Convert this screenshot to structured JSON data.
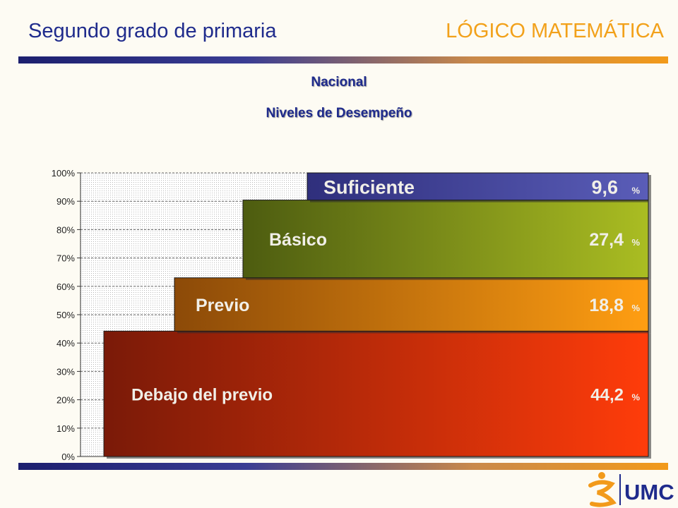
{
  "header": {
    "left_title": "Segundo grado de primaria",
    "right_title": "LÓGICO MATEMÁTICA"
  },
  "colors": {
    "header_blue": "#1f2b8c",
    "header_orange": "#f2a11a"
  },
  "logo": {
    "text": "UMC"
  },
  "chart_data": {
    "type": "bar",
    "title": "Nacional",
    "subtitle": "Niveles de Desempeño",
    "y_ticks": [
      "0%",
      "10%",
      "20%",
      "30%",
      "40%",
      "50%",
      "60%",
      "70%",
      "80%",
      "90%",
      "100%"
    ],
    "ylim": [
      0,
      100
    ],
    "grid": true,
    "stacked": true,
    "series": [
      {
        "name": "Debajo del previo",
        "value": 44.2,
        "label": "44,2",
        "unit": "%",
        "color_start": "#7a1a08",
        "color_end": "#ff3c0a"
      },
      {
        "name": "Previo",
        "value": 18.8,
        "label": "18,8",
        "unit": "%",
        "color_start": "#8c4a08",
        "color_end": "#ff9e12"
      },
      {
        "name": "Básico",
        "value": 27.4,
        "label": "27,4",
        "unit": "%",
        "color_start": "#4d5c10",
        "color_end": "#aabd22"
      },
      {
        "name": "Suficiente",
        "value": 9.6,
        "label": "9,6",
        "unit": "%",
        "color_start": "#2f2f7c",
        "color_end": "#5a5db8"
      }
    ]
  }
}
